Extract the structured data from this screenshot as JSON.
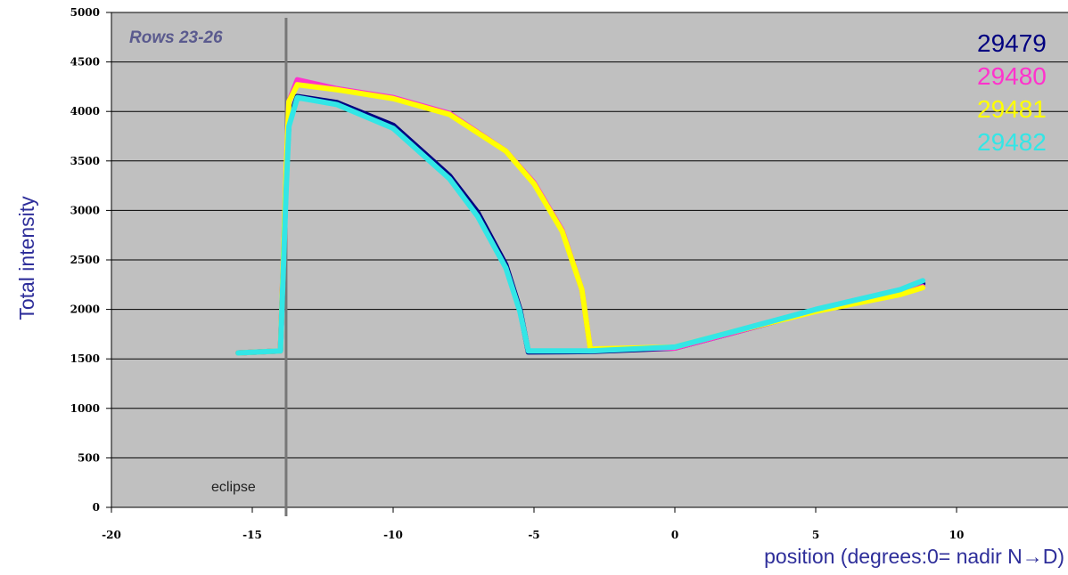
{
  "chart_data": {
    "type": "scatter",
    "ylabel": "Total intensity",
    "xlabel": "position (degrees:0= nadir N→D)",
    "xlim": [
      -20,
      12
    ],
    "ylim": [
      0,
      5000
    ],
    "xticks": [
      -20,
      -15,
      -10,
      -5,
      0,
      5,
      10
    ],
    "yticks": [
      0,
      500,
      1000,
      1500,
      2000,
      2500,
      3000,
      3500,
      4000,
      4500,
      5000
    ],
    "grid": "horizontal",
    "legend_position": "top-right",
    "annotations": {
      "panel": "Rows 23-26",
      "marker_label": "eclipse",
      "marker_x": -13.8
    },
    "series": [
      {
        "name": "29479",
        "color": "#000080",
        "x": [
          -15.5,
          -14.0,
          -13.8,
          -13.7,
          -13.4,
          -12.0,
          -10.0,
          -8.0,
          -7.0,
          -6.0,
          -5.5,
          -5.2,
          -3.0,
          0.0,
          2.0,
          5.0,
          8.0,
          8.8
        ],
        "y": [
          1560,
          1580,
          3300,
          3900,
          4150,
          4090,
          3860,
          3350,
          2980,
          2450,
          2000,
          1570,
          1575,
          1610,
          1760,
          1990,
          2180,
          2260
        ]
      },
      {
        "name": "29480",
        "color": "#ff33cc",
        "x": [
          -15.5,
          -14.0,
          -13.8,
          -13.7,
          -13.4,
          -12.0,
          -10.0,
          -8.0,
          -6.0,
          -5.0,
          -4.0,
          -3.3,
          -3.0,
          0.0,
          2.0,
          5.0,
          8.0,
          8.8
        ],
        "y": [
          1560,
          1580,
          3400,
          4100,
          4320,
          4230,
          4140,
          3980,
          3600,
          3280,
          2800,
          2200,
          1600,
          1610,
          1760,
          1990,
          2160,
          2230
        ]
      },
      {
        "name": "29481",
        "color": "#ffff00",
        "x": [
          -15.5,
          -14.0,
          -13.8,
          -13.7,
          -13.4,
          -12.0,
          -10.0,
          -8.0,
          -6.0,
          -5.0,
          -4.0,
          -3.3,
          -3.0,
          0.0,
          2.0,
          5.0,
          8.0,
          8.8
        ],
        "y": [
          1560,
          1580,
          3400,
          4100,
          4270,
          4220,
          4130,
          3970,
          3600,
          3270,
          2790,
          2200,
          1600,
          1620,
          1770,
          1980,
          2150,
          2220
        ]
      },
      {
        "name": "29482",
        "color": "#33e6e6",
        "x": [
          -15.5,
          -14.0,
          -13.8,
          -13.7,
          -13.4,
          -12.0,
          -10.0,
          -8.0,
          -7.0,
          -6.0,
          -5.5,
          -5.2,
          -3.0,
          0.0,
          2.0,
          5.0,
          8.0,
          8.8
        ],
        "y": [
          1560,
          1580,
          3200,
          3850,
          4140,
          4070,
          3830,
          3320,
          2940,
          2420,
          1980,
          1580,
          1580,
          1620,
          1770,
          2000,
          2200,
          2290
        ]
      }
    ]
  }
}
